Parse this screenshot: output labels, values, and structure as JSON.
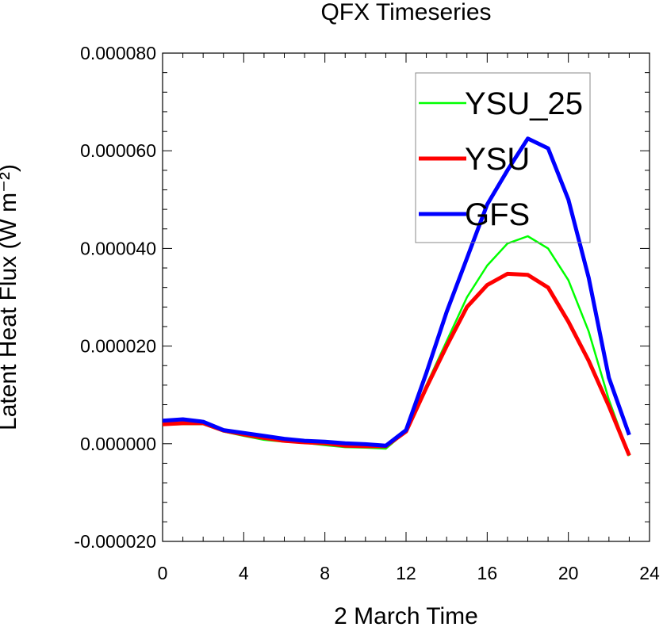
{
  "chart_data": {
    "type": "line",
    "title": "QFX Timeseries",
    "xlabel": "2 March Time",
    "ylabel": "Latent Heat Flux (W m⁻²)",
    "xlim": [
      0,
      24
    ],
    "ylim": [
      -2e-05,
      8e-05
    ],
    "x_ticks": [
      0,
      4,
      8,
      12,
      16,
      20,
      24
    ],
    "x_tick_labels": [
      "0",
      "4",
      "8",
      "12",
      "16",
      "20",
      "24"
    ],
    "y_ticks": [
      -2e-05,
      0,
      2e-05,
      4e-05,
      6e-05,
      8e-05
    ],
    "y_tick_labels": [
      "-0.000020",
      "0.000000",
      "0.000020",
      "0.000040",
      "0.000060",
      "0.000080"
    ],
    "x": [
      0,
      1,
      2,
      3,
      4,
      5,
      6,
      7,
      8,
      9,
      10,
      11,
      12,
      13,
      14,
      15,
      16,
      17,
      18,
      19,
      20,
      21,
      22,
      23
    ],
    "legend_position": "top-right",
    "series": [
      {
        "name": "YSU_25",
        "color": "#00ff00",
        "width": "thin",
        "values": [
          3.9e-06,
          4e-06,
          4e-06,
          2.5e-06,
          1.6e-06,
          8e-07,
          4e-07,
          2e-07,
          -3e-07,
          -7e-07,
          -8e-07,
          -1e-06,
          2.5e-06,
          1.2e-05,
          2.1e-05,
          3e-05,
          3.65e-05,
          4.1e-05,
          4.25e-05,
          4e-05,
          3.35e-05,
          2.3e-05,
          9e-06,
          -2.5e-06
        ]
      },
      {
        "name": "YSU",
        "color": "#ff0000",
        "width": "thick",
        "values": [
          4e-06,
          4.2e-06,
          4.2e-06,
          2.7e-06,
          1.9e-06,
          1.2e-06,
          6e-07,
          3e-07,
          1e-07,
          -4e-07,
          -5e-07,
          -5e-07,
          2.5e-06,
          1.15e-05,
          2e-05,
          2.8e-05,
          3.25e-05,
          3.48e-05,
          3.46e-05,
          3.2e-05,
          2.5e-05,
          1.7e-05,
          7.7e-06,
          -2.4e-06
        ]
      },
      {
        "name": "GFS",
        "color": "#0000ff",
        "width": "thick",
        "values": [
          4.7e-06,
          5e-06,
          4.5e-06,
          2.8e-06,
          2.2e-06,
          1.6e-06,
          1e-06,
          6e-07,
          4e-07,
          1e-07,
          -1e-07,
          -4e-07,
          2.8e-06,
          1.45e-05,
          2.7e-05,
          3.8e-05,
          4.9e-05,
          5.6e-05,
          6.25e-05,
          6.05e-05,
          5e-05,
          3.4e-05,
          1.35e-05,
          1.8e-06
        ]
      }
    ]
  }
}
